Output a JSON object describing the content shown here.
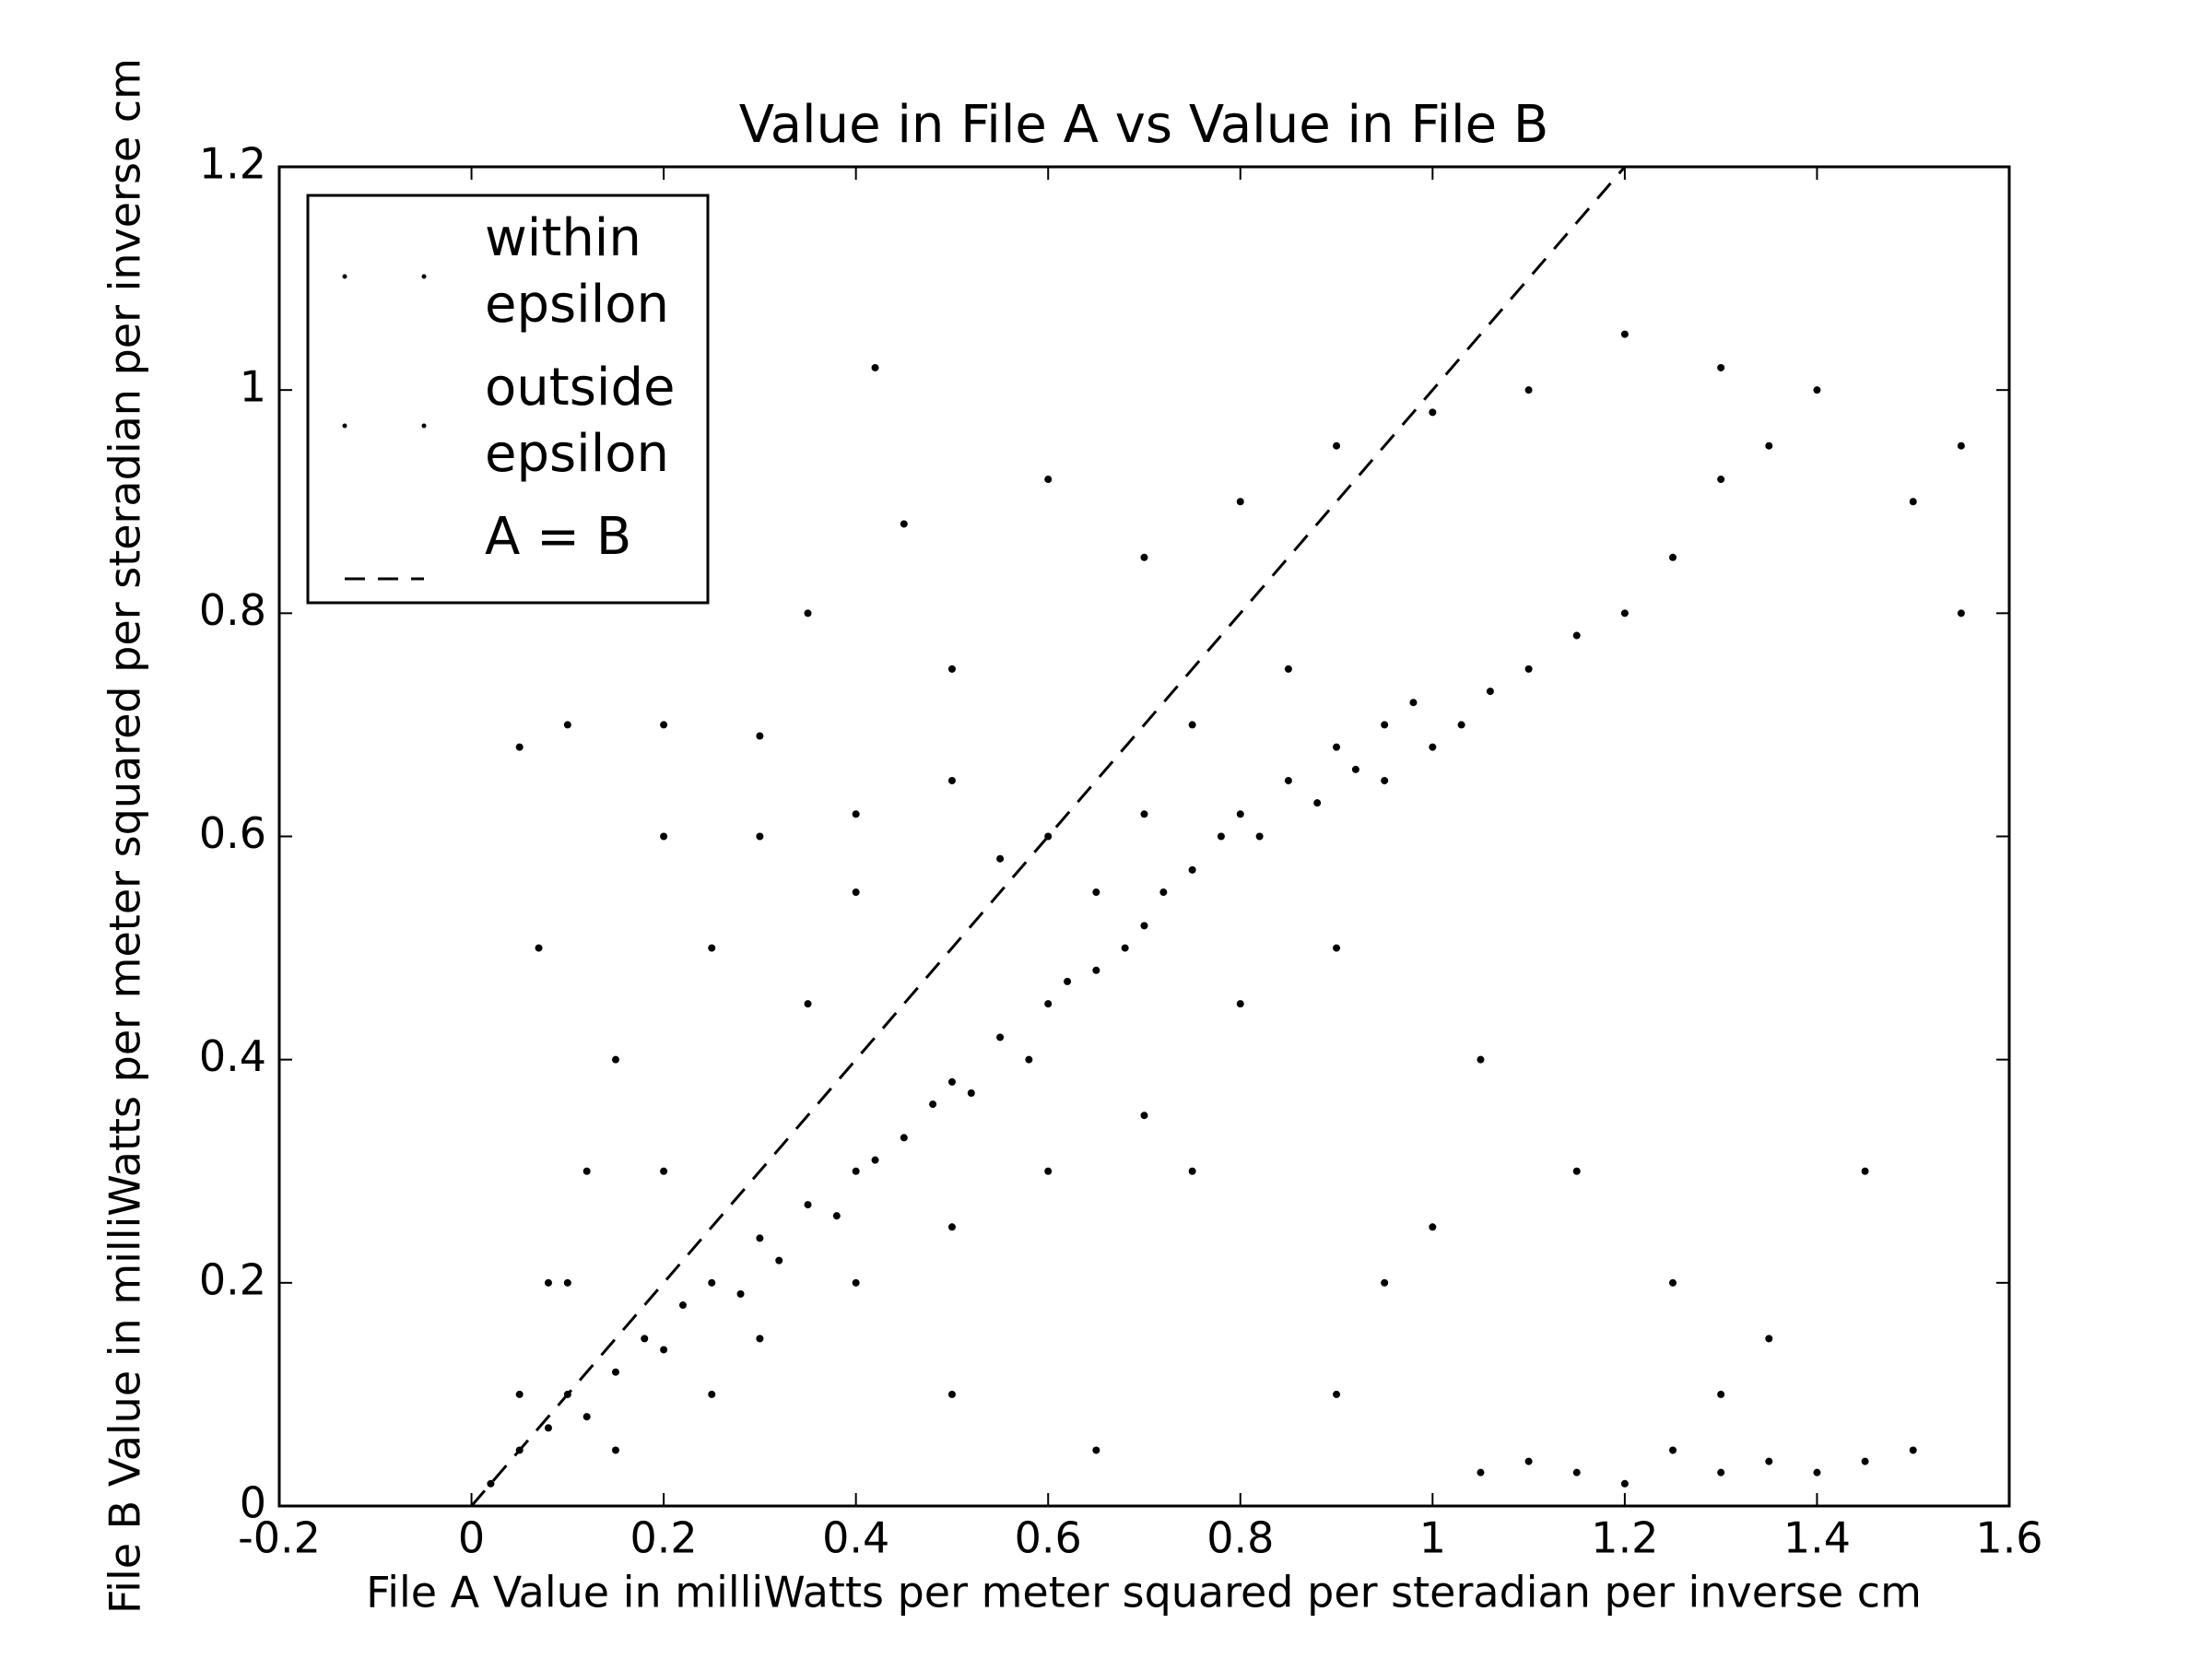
{
  "chart_data": {
    "type": "scatter",
    "title": "Value in File A vs Value in File B",
    "x_label": "File A Value in milliWatts per meter squared per steradian per inverse cm",
    "y_label": "File B Value in milliWatts per meter squared per steradian per inverse cm",
    "xlim": [
      -0.2,
      1.6
    ],
    "ylim": [
      0,
      1.2
    ],
    "xticks": [
      -0.2,
      0,
      0.2,
      0.4,
      0.6,
      0.8,
      1,
      1.2,
      1.4,
      1.6
    ],
    "yticks": [
      0,
      0.2,
      0.4,
      0.6,
      0.8,
      1,
      1.2
    ],
    "legend": "upper left",
    "series": [
      {
        "name": "within epsilon",
        "color": "#000000",
        "x": [
          0.02,
          0.05,
          0.08,
          0.1,
          0.12,
          0.15,
          0.18,
          0.2,
          0.22,
          0.25,
          0.28,
          0.3,
          0.32,
          0.35,
          0.38,
          0.4,
          0.42,
          0.45,
          0.48,
          0.5,
          0.52,
          0.55,
          0.58,
          0.6,
          0.62,
          0.65,
          0.68,
          0.7,
          0.72,
          0.75,
          0.78,
          0.8,
          0.82,
          0.85,
          0.88,
          0.9,
          0.92,
          0.95,
          0.98,
          1.0,
          1.03,
          1.06,
          1.1,
          1.15,
          1.2,
          1.25,
          1.3,
          1.35,
          0.05,
          0.1,
          0.2,
          0.3,
          0.4,
          0.5,
          0.6,
          0.7,
          0.8,
          0.9,
          0.15,
          0.25
        ],
        "values": [
          0.02,
          0.05,
          0.07,
          0.1,
          0.08,
          0.12,
          0.15,
          0.14,
          0.18,
          0.2,
          0.19,
          0.24,
          0.22,
          0.27,
          0.26,
          0.3,
          0.31,
          0.33,
          0.36,
          0.38,
          0.37,
          0.42,
          0.4,
          0.45,
          0.47,
          0.48,
          0.5,
          0.52,
          0.55,
          0.57,
          0.6,
          0.62,
          0.6,
          0.65,
          0.63,
          0.68,
          0.66,
          0.7,
          0.72,
          0.68,
          0.7,
          0.73,
          0.75,
          0.78,
          0.8,
          0.85,
          0.92,
          0.95,
          0.1,
          0.2,
          0.3,
          0.15,
          0.2,
          0.25,
          0.3,
          0.35,
          0.45,
          0.5,
          0.05,
          0.1
        ]
      },
      {
        "name": "outside epsilon",
        "color": "#000000",
        "x": [
          0.05,
          0.07,
          0.1,
          0.12,
          0.2,
          0.3,
          0.35,
          0.45,
          0.5,
          0.6,
          0.7,
          0.8,
          0.9,
          1.0,
          1.1,
          1.2,
          1.3,
          1.4,
          1.5,
          1.55,
          1.05,
          1.1,
          1.15,
          1.2,
          1.25,
          1.3,
          1.35,
          1.4,
          1.45,
          1.5,
          0.3,
          0.4,
          0.5,
          0.6,
          0.7,
          0.75,
          0.85,
          0.95,
          1.05,
          1.15,
          1.25,
          1.35,
          0.15,
          0.25,
          0.35,
          0.5,
          0.65,
          0.9,
          1.0,
          0.08,
          0.2,
          0.4,
          0.55,
          0.42,
          0.65,
          0.75,
          0.95,
          1.3,
          1.45,
          1.55
        ],
        "values": [
          0.68,
          0.5,
          0.7,
          0.3,
          0.7,
          0.69,
          0.8,
          0.88,
          0.75,
          0.92,
          0.85,
          0.9,
          0.95,
          0.98,
          1.0,
          1.05,
          1.02,
          1.0,
          0.9,
          0.95,
          0.03,
          0.04,
          0.03,
          0.02,
          0.05,
          0.03,
          0.04,
          0.03,
          0.04,
          0.05,
          0.6,
          0.55,
          0.65,
          0.6,
          0.62,
          0.7,
          0.75,
          0.65,
          0.4,
          0.3,
          0.2,
          0.15,
          0.4,
          0.5,
          0.45,
          0.1,
          0.05,
          0.1,
          0.25,
          0.2,
          0.6,
          0.62,
          0.58,
          1.02,
          0.55,
          0.3,
          0.2,
          0.1,
          0.3,
          0.8
        ]
      },
      {
        "name": "A = B",
        "color": "#000000",
        "type": "line",
        "dashed": true,
        "x": [
          0,
          1.2
        ],
        "values": [
          0,
          1.2
        ]
      }
    ]
  }
}
